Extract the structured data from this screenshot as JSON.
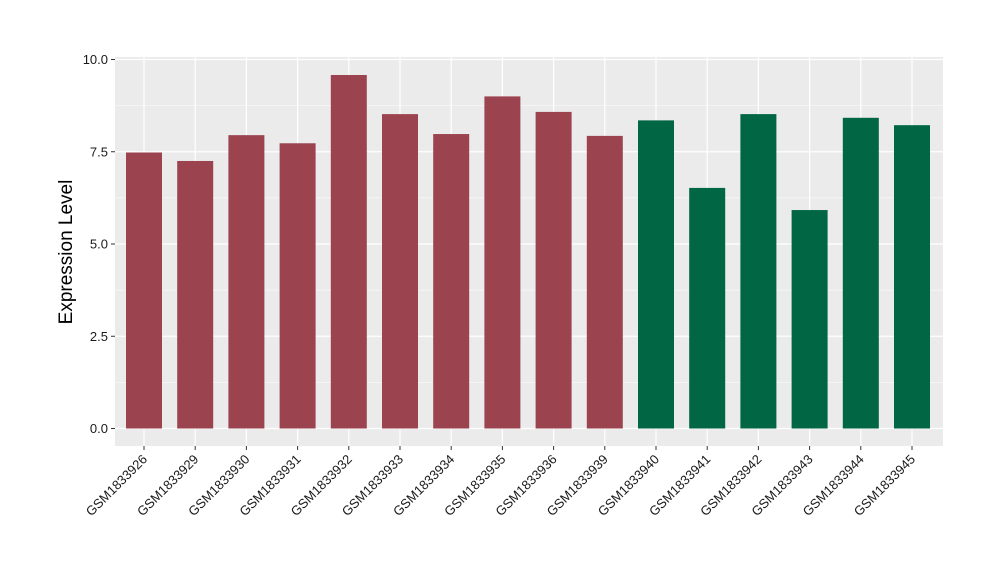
{
  "chart_data": {
    "type": "bar",
    "title": "",
    "xlabel": "",
    "ylabel": "Expression Level",
    "ylim": [
      0,
      10
    ],
    "yticks": [
      0.0,
      2.5,
      5.0,
      7.5,
      10.0
    ],
    "ytick_labels": [
      "0.0",
      "2.5",
      "5.0",
      "7.5",
      "10.0"
    ],
    "grid": true,
    "legend": "none",
    "categories": [
      "GSM1833926",
      "GSM1833929",
      "GSM1833930",
      "GSM1833931",
      "GSM1833932",
      "GSM1833933",
      "GSM1833934",
      "GSM1833935",
      "GSM1833936",
      "GSM1833939",
      "GSM1833940",
      "GSM1833941",
      "GSM1833942",
      "GSM1833943",
      "GSM1833944",
      "GSM1833945"
    ],
    "values": [
      7.48,
      7.25,
      7.95,
      7.73,
      9.58,
      8.52,
      7.98,
      9.0,
      8.58,
      7.93,
      8.35,
      6.52,
      8.52,
      5.92,
      8.42,
      8.22
    ],
    "bar_colors": [
      "#9b4450",
      "#9b4450",
      "#9b4450",
      "#9b4450",
      "#9b4450",
      "#9b4450",
      "#9b4450",
      "#9b4450",
      "#9b4450",
      "#9b4450",
      "#006644",
      "#006644",
      "#006644",
      "#006644",
      "#006644",
      "#006644"
    ],
    "colors": {
      "panel_background": "#ebebeb",
      "grid_major": "#ffffff",
      "group_a": "#9b4450",
      "group_b": "#006644"
    }
  }
}
